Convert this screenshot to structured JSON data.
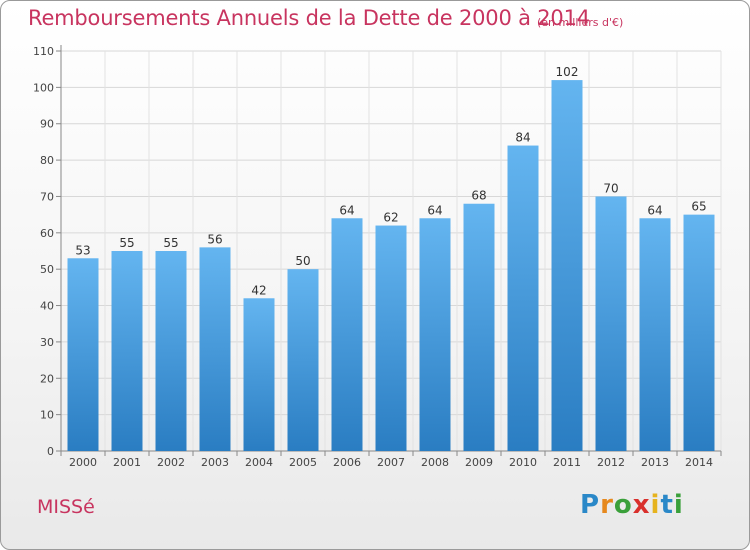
{
  "title": "Remboursements Annuels de la Dette de 2000 à 2014",
  "subtitle": "(en milliers d'€)",
  "commune": "MISSé",
  "logo": {
    "letters": [
      "P",
      "r",
      "o",
      "x",
      "i",
      "t",
      "i"
    ],
    "colors": [
      "#2a88c8",
      "#e6891e",
      "#3aa03a",
      "#d9302c",
      "#e6b31e",
      "#2a88c8",
      "#3aa03a"
    ]
  },
  "colors": {
    "bar": "#4a9fe0",
    "bar_light": "#64b5f0",
    "bar_dark": "#2a7dc2",
    "accent": "#c8345f"
  },
  "chart_data": {
    "type": "bar",
    "categories": [
      "2000",
      "2001",
      "2002",
      "2003",
      "2004",
      "2005",
      "2006",
      "2007",
      "2008",
      "2009",
      "2010",
      "2011",
      "2012",
      "2013",
      "2014"
    ],
    "values": [
      53,
      55,
      55,
      56,
      42,
      50,
      64,
      62,
      64,
      68,
      84,
      102,
      70,
      64,
      65
    ],
    "ylim": [
      0,
      110
    ],
    "yticks": [
      0,
      10,
      20,
      30,
      40,
      50,
      60,
      70,
      80,
      90,
      100,
      110
    ],
    "grid": true,
    "xlabel": "",
    "ylabel": ""
  }
}
